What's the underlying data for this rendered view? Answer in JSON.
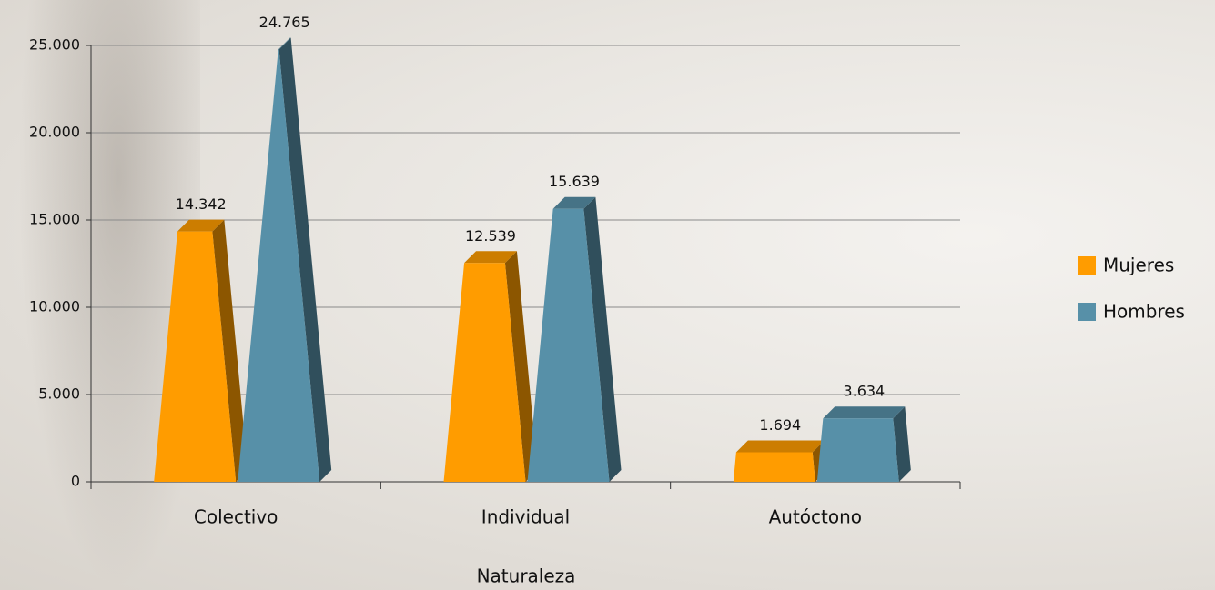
{
  "chart_data": {
    "type": "bar",
    "x_label": "Naturaleza",
    "categories": [
      "Colectivo",
      "Individual",
      "Autóctono"
    ],
    "series": [
      {
        "name": "Mujeres",
        "color": "#ff9c00",
        "values": [
          14342,
          12539,
          1694
        ],
        "value_labels": [
          "14.342",
          "12.539",
          "1.694"
        ]
      },
      {
        "name": "Hombres",
        "color": "#5790a8",
        "values": [
          24765,
          15639,
          3634
        ],
        "value_labels": [
          "24.765",
          "15.639",
          "3.634"
        ]
      }
    ],
    "ylim": [
      0,
      25000
    ],
    "yticks": [
      {
        "value": 0,
        "label": "0"
      },
      {
        "value": 5000,
        "label": "5.000"
      },
      {
        "value": 10000,
        "label": "10.000"
      },
      {
        "value": 15000,
        "label": "15.000"
      },
      {
        "value": 20000,
        "label": "20.000"
      },
      {
        "value": 25000,
        "label": "25.000"
      }
    ],
    "grid": true,
    "legend": "right"
  }
}
